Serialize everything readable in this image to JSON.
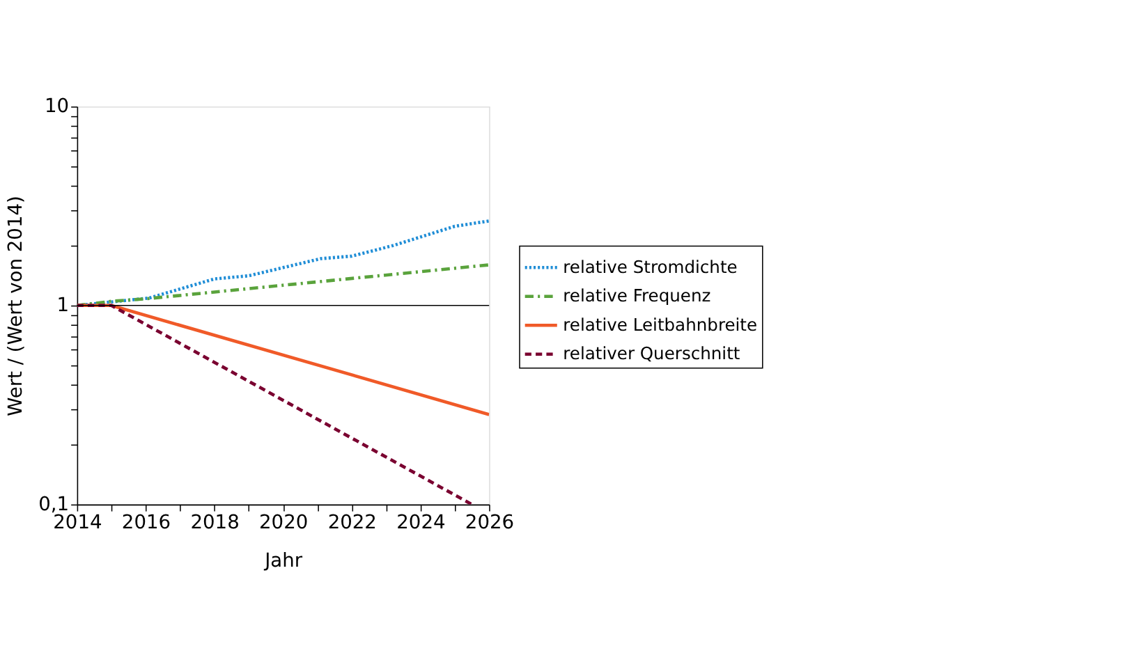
{
  "chart_data": {
    "type": "line",
    "xlabel": "Jahr",
    "ylabel": "Wert / (Wert von 2014)",
    "log": "y",
    "grid": false,
    "legend": "right",
    "marker": "none",
    "xlim": [
      2014,
      2026
    ],
    "ylim": [
      0.1,
      10
    ],
    "xticks": [
      2014,
      {
        "value": 2015,
        "label": null
      },
      2016,
      {
        "value": 2017,
        "label": null
      },
      2018,
      {
        "value": 2019,
        "label": null
      },
      2020,
      {
        "value": 2021,
        "label": null
      },
      2022,
      {
        "value": 2023,
        "label": null
      },
      2024,
      {
        "value": 2025,
        "label": null
      },
      2026
    ],
    "yticks": [
      {
        "value": 0.1,
        "label": "0,1"
      },
      {
        "value": 0.2,
        "label": null
      },
      {
        "value": 0.3,
        "label": null
      },
      {
        "value": 0.4,
        "label": null
      },
      {
        "value": 0.5,
        "label": null
      },
      {
        "value": 0.6,
        "label": null
      },
      {
        "value": 0.7,
        "label": null
      },
      {
        "value": 0.8,
        "label": null
      },
      {
        "value": 0.9,
        "label": null
      },
      1,
      {
        "value": 2,
        "label": null
      },
      {
        "value": 3,
        "label": null
      },
      {
        "value": 4,
        "label": null
      },
      {
        "value": 5,
        "label": null
      },
      {
        "value": 6,
        "label": null
      },
      {
        "value": 7,
        "label": null
      },
      {
        "value": 8,
        "label": null
      },
      {
        "value": 9,
        "label": null
      },
      10
    ],
    "ref_lines": [
      {
        "axis": "y",
        "value": 1,
        "label": null,
        "color": "#000000",
        "line_style": "solid"
      }
    ],
    "series": [
      {
        "name": "relative Stromdichte",
        "color": "#1f8dd6",
        "line_style": "dotted",
        "x": [
          2014,
          2016.1,
          2018,
          2019,
          2021.1,
          2022,
          2023.2,
          2025,
          2026
        ],
        "values": [
          1,
          1.09,
          1.36,
          1.41,
          1.72,
          1.77,
          2.0,
          2.5,
          2.66
        ]
      },
      {
        "name": "relative Frequenz",
        "color": "#5aa33c",
        "line_style": "dashdot",
        "x": [
          2014,
          2015,
          2016,
          2026
        ],
        "values": [
          1,
          1.05,
          1.08,
          1.6
        ]
      },
      {
        "name": "relative Leitbahnbreite",
        "color": "#f05a28",
        "line_style": "solid",
        "x": [
          2014,
          2015,
          2026
        ],
        "values": [
          1,
          1,
          0.283
        ]
      },
      {
        "name": "relativer Querschnitt",
        "color": "#7a0030",
        "line_style": "dashed",
        "x": [
          2014,
          2015,
          2025.5
        ],
        "values": [
          1,
          1,
          0.1
        ]
      }
    ]
  }
}
